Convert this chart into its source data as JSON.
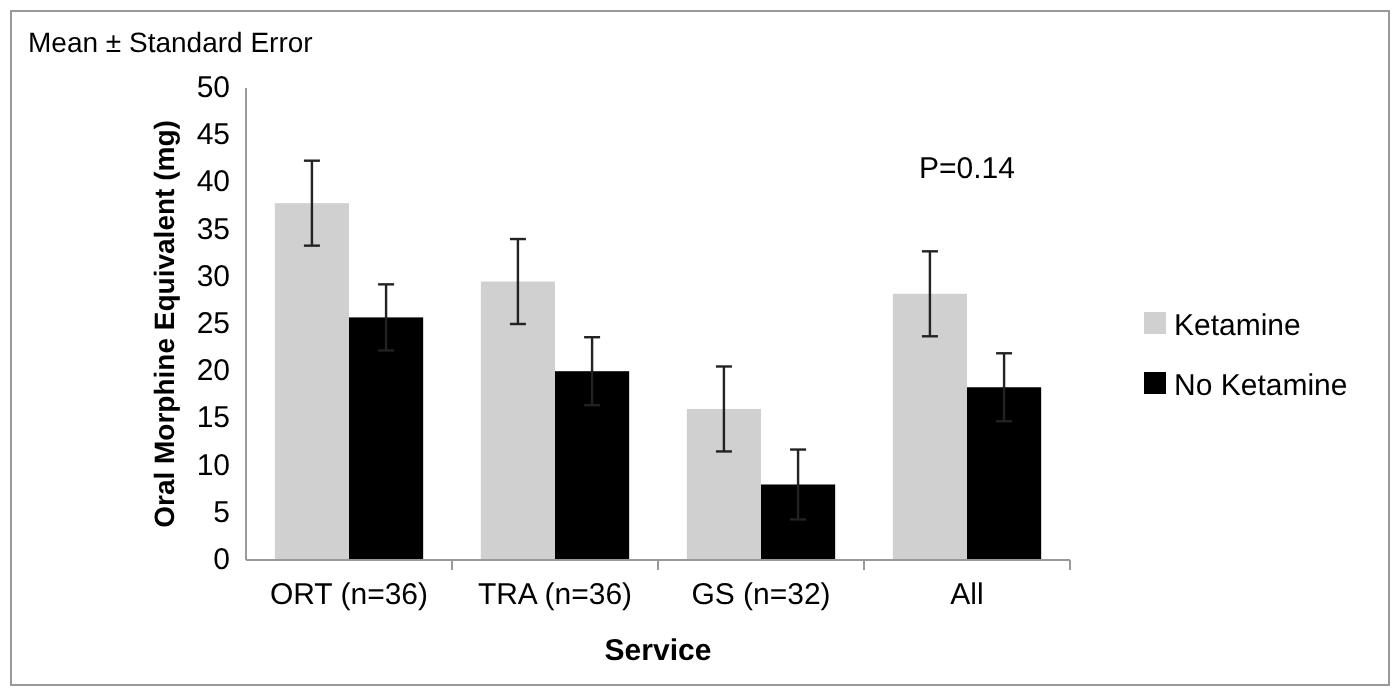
{
  "chart_data": {
    "type": "bar",
    "subtitle": "Mean ± Standard Error",
    "xlabel": "Service",
    "ylabel": "Oral Morphine Equivalent (mg)",
    "categories": [
      "ORT (n=36)",
      "TRA (n=36)",
      "GS (n=32)",
      "All"
    ],
    "series": [
      {
        "name": "Ketamine",
        "color": "#d0d0d0",
        "values": [
          37.8,
          29.5,
          16,
          28.2
        ],
        "errors": [
          4.5,
          4.5,
          4.5,
          4.5
        ]
      },
      {
        "name": "No Ketamine",
        "color": "#000000",
        "values": [
          25.7,
          20,
          8,
          18.3
        ],
        "errors": [
          3.5,
          3.6,
          3.7,
          3.6
        ]
      }
    ],
    "ylim": [
      0,
      50
    ],
    "yticks": [
      0,
      5,
      10,
      15,
      20,
      25,
      30,
      35,
      40,
      45,
      50
    ],
    "grid": false,
    "legend": "right",
    "annotations": [
      "P=0.14"
    ]
  }
}
